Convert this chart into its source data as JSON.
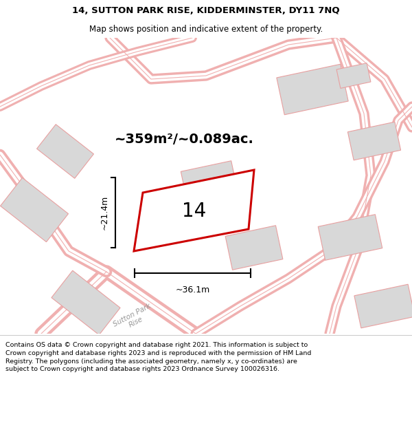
{
  "title_line1": "14, SUTTON PARK RISE, KIDDERMINSTER, DY11 7NQ",
  "title_line2": "Map shows position and indicative extent of the property.",
  "area_text": "~359m²/~0.089ac.",
  "label_14": "14",
  "dim_width": "~36.1m",
  "dim_height": "~21.4m",
  "street_label": "Sutton Park\nRise",
  "footer_text": "Contains OS data © Crown copyright and database right 2021. This information is subject to Crown copyright and database rights 2023 and is reproduced with the permission of HM Land Registry. The polygons (including the associated geometry, namely x, y co-ordinates) are subject to Crown copyright and database rights 2023 Ordnance Survey 100026316.",
  "road_color": "#f0b0b0",
  "road_fill": "#ffffff",
  "building_color": "#d8d8d8",
  "building_edge": "#e8a0a0",
  "plot_fill": "#ffffff",
  "plot_edge": "#cc0000",
  "dim_color": "#000000",
  "text_color": "#000000",
  "map_bg": "#ffffff",
  "footer_border": "#cccccc"
}
